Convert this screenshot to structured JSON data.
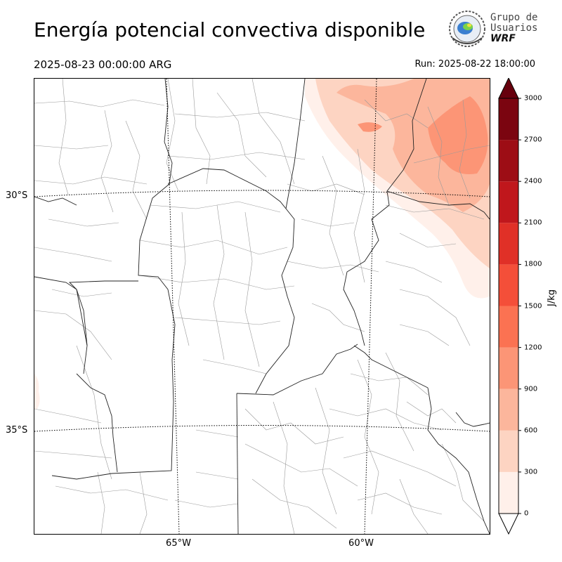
{
  "header": {
    "title": "Energía potencial convectiva disponible",
    "valid_time": "2025-08-23 00:00:00 ARG",
    "run_label": "Run: 2025-08-22 18:00:00"
  },
  "logo": {
    "line1": "Grupo de",
    "line2": "Usuarios",
    "line3": "WRF",
    "icon": "wrf-users-group-logo-icon"
  },
  "map": {
    "lat_labels": [
      "30°S",
      "35°S"
    ],
    "lon_labels": [
      "65°W",
      "60°W"
    ]
  },
  "colorbar": {
    "unit": "J/kg",
    "ticks": [
      "0",
      "300",
      "600",
      "900",
      "1200",
      "1500",
      "1800",
      "2100",
      "2400",
      "2700",
      "3000"
    ],
    "colors": [
      "#fff0ea",
      "#fdd4c2",
      "#fcb69c",
      "#fc9576",
      "#fb7252",
      "#f44f39",
      "#e03027",
      "#c0171c",
      "#9d0d15",
      "#7b0510"
    ],
    "extend_color": "#67000d"
  }
}
